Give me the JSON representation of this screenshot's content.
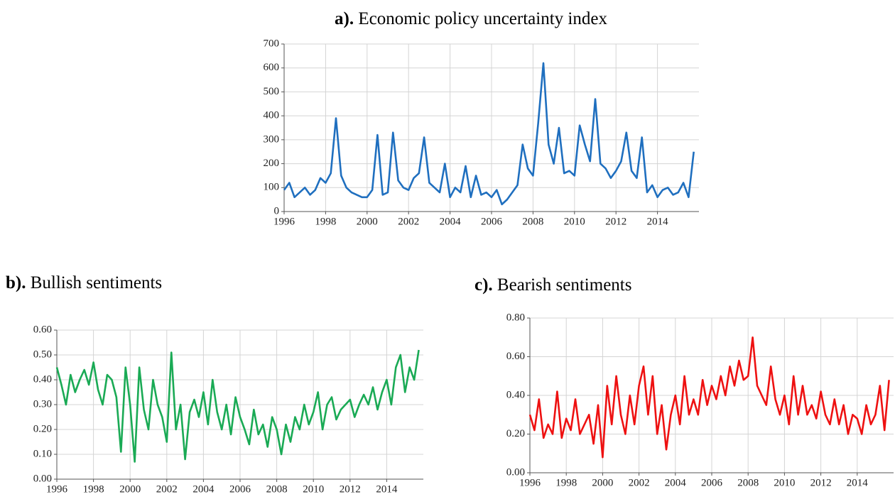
{
  "chart_data": [
    {
      "type": "line",
      "panel_label": "a).",
      "title": "Economic policy uncertainty index",
      "color": "#1f6fbf",
      "x": [
        1996,
        1996.25,
        1996.5,
        1996.75,
        1997,
        1997.25,
        1997.5,
        1997.75,
        1998,
        1998.25,
        1998.5,
        1998.75,
        1999,
        1999.25,
        1999.5,
        1999.75,
        2000,
        2000.25,
        2000.5,
        2000.75,
        2001,
        2001.25,
        2001.5,
        2001.75,
        2002,
        2002.25,
        2002.5,
        2002.75,
        2003,
        2003.25,
        2003.5,
        2003.75,
        2004,
        2004.25,
        2004.5,
        2004.75,
        2005,
        2005.25,
        2005.5,
        2005.75,
        2006,
        2006.25,
        2006.5,
        2006.75,
        2007,
        2007.25,
        2007.5,
        2007.75,
        2008,
        2008.25,
        2008.5,
        2008.75,
        2009,
        2009.25,
        2009.5,
        2009.75,
        2010,
        2010.25,
        2010.5,
        2010.75,
        2011,
        2011.25,
        2011.5,
        2011.75,
        2012,
        2012.25,
        2012.5,
        2012.75,
        2013,
        2013.25,
        2013.5,
        2013.75,
        2014,
        2014.25,
        2014.5,
        2014.75,
        2015,
        2015.25,
        2015.5,
        2015.75
      ],
      "values": [
        90,
        120,
        60,
        80,
        100,
        70,
        90,
        140,
        120,
        160,
        390,
        150,
        100,
        80,
        70,
        60,
        60,
        90,
        320,
        70,
        80,
        330,
        130,
        100,
        90,
        140,
        160,
        310,
        120,
        100,
        80,
        200,
        60,
        100,
        80,
        190,
        60,
        150,
        70,
        80,
        60,
        90,
        30,
        50,
        80,
        110,
        280,
        180,
        150,
        370,
        620,
        280,
        200,
        350,
        160,
        170,
        150,
        360,
        280,
        210,
        470,
        200,
        180,
        140,
        170,
        210,
        330,
        170,
        140,
        310,
        80,
        110,
        60,
        90,
        100,
        70,
        80,
        120,
        60,
        250
      ],
      "xlim": [
        1996,
        2016
      ],
      "xticks": [
        1996,
        1998,
        2000,
        2002,
        2004,
        2006,
        2008,
        2010,
        2012,
        2014
      ],
      "ylim": [
        0,
        700
      ],
      "yticks": [
        0,
        100,
        200,
        300,
        400,
        500,
        600,
        700
      ],
      "grid": true
    },
    {
      "type": "line",
      "panel_label": "b).",
      "title": "Bullish sentiments",
      "color": "#1aaa55",
      "x": [
        1996,
        1996.25,
        1996.5,
        1996.75,
        1997,
        1997.25,
        1997.5,
        1997.75,
        1998,
        1998.25,
        1998.5,
        1998.75,
        1999,
        1999.25,
        1999.5,
        1999.75,
        2000,
        2000.25,
        2000.5,
        2000.75,
        2001,
        2001.25,
        2001.5,
        2001.75,
        2002,
        2002.25,
        2002.5,
        2002.75,
        2003,
        2003.25,
        2003.5,
        2003.75,
        2004,
        2004.25,
        2004.5,
        2004.75,
        2005,
        2005.25,
        2005.5,
        2005.75,
        2006,
        2006.25,
        2006.5,
        2006.75,
        2007,
        2007.25,
        2007.5,
        2007.75,
        2008,
        2008.25,
        2008.5,
        2008.75,
        2009,
        2009.25,
        2009.5,
        2009.75,
        2010,
        2010.25,
        2010.5,
        2010.75,
        2011,
        2011.25,
        2011.5,
        2011.75,
        2012,
        2012.25,
        2012.5,
        2012.75,
        2013,
        2013.25,
        2013.5,
        2013.75,
        2014,
        2014.25,
        2014.5,
        2014.75,
        2015,
        2015.25,
        2015.5,
        2015.75
      ],
      "values": [
        0.45,
        0.38,
        0.3,
        0.42,
        0.35,
        0.4,
        0.44,
        0.38,
        0.47,
        0.36,
        0.3,
        0.42,
        0.4,
        0.33,
        0.11,
        0.45,
        0.3,
        0.07,
        0.45,
        0.28,
        0.2,
        0.4,
        0.3,
        0.25,
        0.15,
        0.51,
        0.2,
        0.3,
        0.08,
        0.27,
        0.32,
        0.25,
        0.35,
        0.22,
        0.4,
        0.27,
        0.2,
        0.3,
        0.18,
        0.33,
        0.25,
        0.2,
        0.14,
        0.28,
        0.18,
        0.22,
        0.13,
        0.25,
        0.2,
        0.1,
        0.22,
        0.15,
        0.25,
        0.2,
        0.3,
        0.22,
        0.27,
        0.35,
        0.2,
        0.3,
        0.33,
        0.24,
        0.28,
        0.3,
        0.32,
        0.25,
        0.3,
        0.34,
        0.3,
        0.37,
        0.28,
        0.35,
        0.4,
        0.3,
        0.45,
        0.5,
        0.35,
        0.45,
        0.4,
        0.52
      ],
      "xlim": [
        1996,
        2016
      ],
      "xticks": [
        1996,
        1998,
        2000,
        2002,
        2004,
        2006,
        2008,
        2010,
        2012,
        2014
      ],
      "ylim": [
        0,
        0.6
      ],
      "yticks": [
        {
          "value": 0,
          "label": "0.00"
        },
        {
          "value": 0.1,
          "label": "0.10"
        },
        {
          "value": 0.2,
          "label": "0.20"
        },
        {
          "value": 0.3,
          "label": "0.30"
        },
        {
          "value": 0.4,
          "label": "0.40"
        },
        {
          "value": 0.5,
          "label": "0.50"
        },
        {
          "value": 0.6,
          "label": "0.60"
        }
      ],
      "grid": true
    },
    {
      "type": "line",
      "panel_label": "c).",
      "title": "Bearish sentiments",
      "color": "#ee1111",
      "x": [
        1996,
        1996.25,
        1996.5,
        1996.75,
        1997,
        1997.25,
        1997.5,
        1997.75,
        1998,
        1998.25,
        1998.5,
        1998.75,
        1999,
        1999.25,
        1999.5,
        1999.75,
        2000,
        2000.25,
        2000.5,
        2000.75,
        2001,
        2001.25,
        2001.5,
        2001.75,
        2002,
        2002.25,
        2002.5,
        2002.75,
        2003,
        2003.25,
        2003.5,
        2003.75,
        2004,
        2004.25,
        2004.5,
        2004.75,
        2005,
        2005.25,
        2005.5,
        2005.75,
        2006,
        2006.25,
        2006.5,
        2006.75,
        2007,
        2007.25,
        2007.5,
        2007.75,
        2008,
        2008.25,
        2008.5,
        2008.75,
        2009,
        2009.25,
        2009.5,
        2009.75,
        2010,
        2010.25,
        2010.5,
        2010.75,
        2011,
        2011.25,
        2011.5,
        2011.75,
        2012,
        2012.25,
        2012.5,
        2012.75,
        2013,
        2013.25,
        2013.5,
        2013.75,
        2014,
        2014.25,
        2014.5,
        2014.75,
        2015,
        2015.25,
        2015.5,
        2015.75
      ],
      "values": [
        0.3,
        0.22,
        0.38,
        0.18,
        0.25,
        0.2,
        0.42,
        0.18,
        0.28,
        0.22,
        0.38,
        0.2,
        0.25,
        0.3,
        0.15,
        0.35,
        0.08,
        0.45,
        0.25,
        0.5,
        0.3,
        0.2,
        0.4,
        0.25,
        0.45,
        0.55,
        0.3,
        0.5,
        0.2,
        0.35,
        0.12,
        0.3,
        0.4,
        0.25,
        0.5,
        0.3,
        0.38,
        0.3,
        0.48,
        0.35,
        0.45,
        0.38,
        0.5,
        0.4,
        0.55,
        0.45,
        0.58,
        0.48,
        0.5,
        0.7,
        0.45,
        0.4,
        0.35,
        0.55,
        0.38,
        0.3,
        0.4,
        0.25,
        0.5,
        0.3,
        0.45,
        0.3,
        0.35,
        0.28,
        0.42,
        0.3,
        0.25,
        0.38,
        0.25,
        0.35,
        0.2,
        0.3,
        0.28,
        0.2,
        0.35,
        0.25,
        0.3,
        0.45,
        0.22,
        0.48
      ],
      "xlim": [
        1996,
        2016
      ],
      "xticks": [
        1996,
        1998,
        2000,
        2002,
        2004,
        2006,
        2008,
        2010,
        2012,
        2014
      ],
      "ylim": [
        0,
        0.8
      ],
      "yticks": [
        {
          "value": 0,
          "label": "0.00"
        },
        {
          "value": 0.2,
          "label": "0.20"
        },
        {
          "value": 0.4,
          "label": "0.40"
        },
        {
          "value": 0.6,
          "label": "0.60"
        },
        {
          "value": 0.8,
          "label": "0.80"
        }
      ],
      "grid": true
    }
  ]
}
